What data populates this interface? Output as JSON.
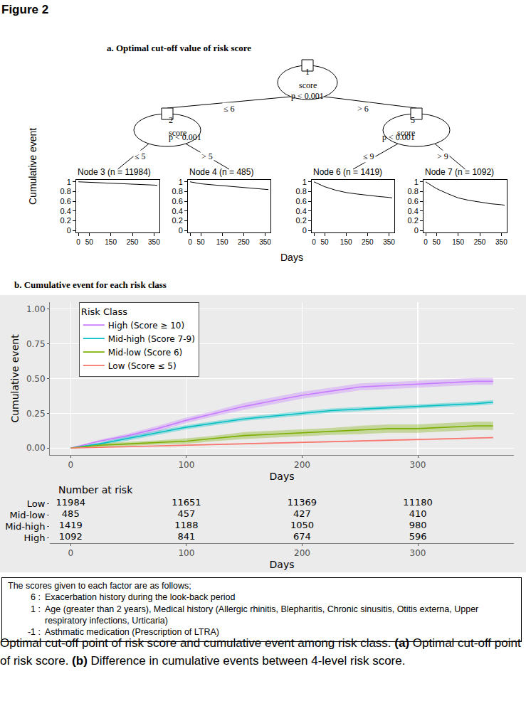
{
  "figure_label": "Figure 2",
  "chart_data": [
    {
      "type": "tree",
      "title": "a. Optimal cut-off value of risk score",
      "nodes": [
        {
          "id": "1",
          "label": "score",
          "p": "p < 0.001"
        },
        {
          "id": "2",
          "label": "score",
          "p": "p < 0.001"
        },
        {
          "id": "5",
          "label": "score",
          "p": "p < 0.001"
        }
      ],
      "edges": [
        {
          "from": "1",
          "to": "2",
          "label": "≤ 6"
        },
        {
          "from": "1",
          "to": "5",
          "label": "> 6"
        },
        {
          "from": "2",
          "to": "3",
          "label": "≤ 5"
        },
        {
          "from": "2",
          "to": "4",
          "label": "> 5"
        },
        {
          "from": "5",
          "to": "6",
          "label": "≤ 9"
        },
        {
          "from": "5",
          "to": "7",
          "label": "> 9"
        }
      ],
      "x": [
        0,
        50,
        100,
        150,
        200,
        250,
        300,
        350,
        365
      ],
      "leaves": [
        {
          "id": "3",
          "title": "Node 3 (n = 11984)",
          "values": [
            1,
            0.99,
            0.98,
            0.97,
            0.96,
            0.95,
            0.94,
            0.93,
            0.93
          ]
        },
        {
          "id": "4",
          "title": "Node 4 (n = 485)",
          "values": [
            1,
            0.96,
            0.94,
            0.92,
            0.9,
            0.88,
            0.87,
            0.85,
            0.84
          ]
        },
        {
          "id": "6",
          "title": "Node 6 (n = 1419)",
          "values": [
            1,
            0.9,
            0.83,
            0.78,
            0.75,
            0.72,
            0.7,
            0.68,
            0.67
          ]
        },
        {
          "id": "7",
          "title": "Node 7 (n = 1092)",
          "values": [
            1,
            0.86,
            0.76,
            0.67,
            0.62,
            0.58,
            0.55,
            0.53,
            0.52
          ]
        }
      ],
      "xlim": [
        -10,
        375
      ],
      "xticks": [
        0,
        50,
        150,
        250,
        350
      ],
      "ylim": [
        -0.04,
        1.04
      ],
      "yticks": [
        0,
        0.2,
        0.4,
        0.6,
        0.8,
        1
      ],
      "x_label": "Days",
      "y_label": "Cumulative event"
    },
    {
      "type": "line",
      "title": "b. Cumulative event for each risk class",
      "x": [
        0,
        25,
        50,
        75,
        100,
        125,
        150,
        175,
        200,
        225,
        250,
        275,
        300,
        325,
        350,
        365
      ],
      "series": [
        {
          "name": "High (Score ≥ 10)",
          "color": "#C77CFF",
          "values": [
            0,
            0.05,
            0.09,
            0.14,
            0.2,
            0.25,
            0.3,
            0.34,
            0.38,
            0.41,
            0.44,
            0.45,
            0.46,
            0.47,
            0.48,
            0.48
          ],
          "lower": [
            0,
            0.04,
            0.075,
            0.12,
            0.18,
            0.23,
            0.275,
            0.315,
            0.355,
            0.385,
            0.415,
            0.425,
            0.435,
            0.445,
            0.455,
            0.455
          ],
          "upper": [
            0,
            0.06,
            0.105,
            0.16,
            0.22,
            0.27,
            0.325,
            0.365,
            0.405,
            0.435,
            0.465,
            0.475,
            0.485,
            0.495,
            0.505,
            0.505
          ]
        },
        {
          "name": "Mid-high (Score 7-9)",
          "color": "#00BFC4",
          "values": [
            0,
            0.03,
            0.07,
            0.11,
            0.15,
            0.18,
            0.21,
            0.23,
            0.25,
            0.27,
            0.28,
            0.29,
            0.3,
            0.31,
            0.32,
            0.33
          ],
          "lower": [
            0,
            0.02,
            0.055,
            0.095,
            0.135,
            0.165,
            0.195,
            0.215,
            0.235,
            0.255,
            0.265,
            0.275,
            0.285,
            0.295,
            0.305,
            0.315
          ],
          "upper": [
            0,
            0.04,
            0.085,
            0.125,
            0.165,
            0.195,
            0.225,
            0.245,
            0.265,
            0.285,
            0.295,
            0.305,
            0.315,
            0.325,
            0.335,
            0.345
          ]
        },
        {
          "name": "Mid-low (Score 6)",
          "color": "#7CAE00",
          "values": [
            0,
            0.02,
            0.03,
            0.04,
            0.05,
            0.07,
            0.09,
            0.1,
            0.11,
            0.12,
            0.13,
            0.14,
            0.14,
            0.15,
            0.16,
            0.16
          ],
          "lower": [
            0,
            0.005,
            0.015,
            0.025,
            0.03,
            0.05,
            0.065,
            0.075,
            0.085,
            0.095,
            0.1,
            0.11,
            0.11,
            0.12,
            0.13,
            0.13
          ],
          "upper": [
            0,
            0.035,
            0.045,
            0.055,
            0.07,
            0.09,
            0.115,
            0.125,
            0.135,
            0.145,
            0.16,
            0.17,
            0.17,
            0.18,
            0.19,
            0.19
          ]
        },
        {
          "name": "Low (Score ≤ 5)",
          "color": "#F8766D",
          "values": [
            0,
            0.005,
            0.01,
            0.015,
            0.02,
            0.025,
            0.03,
            0.035,
            0.04,
            0.045,
            0.05,
            0.055,
            0.06,
            0.065,
            0.07,
            0.075
          ],
          "lower": [
            0,
            0.004,
            0.008,
            0.013,
            0.018,
            0.022,
            0.027,
            0.032,
            0.036,
            0.041,
            0.046,
            0.05,
            0.055,
            0.06,
            0.064,
            0.069
          ],
          "upper": [
            0,
            0.006,
            0.012,
            0.017,
            0.022,
            0.028,
            0.033,
            0.038,
            0.044,
            0.049,
            0.054,
            0.06,
            0.065,
            0.07,
            0.076,
            0.081
          ]
        }
      ],
      "legend_title": "Risk Class",
      "legend": "top-left",
      "grid": true,
      "xlim": [
        -18,
        383
      ],
      "xticks": [
        0,
        100,
        200,
        300
      ],
      "ylim": [
        -0.05,
        1.05
      ],
      "yticks": [
        {
          "value": 0,
          "label": "0.00"
        },
        {
          "value": 0.25,
          "label": "0.25"
        },
        {
          "value": 0.5,
          "label": "0.50"
        },
        {
          "value": 0.75,
          "label": "0.75"
        },
        {
          "value": 1,
          "label": "1.00"
        }
      ],
      "x_label": "Days",
      "y_label": "Cumulative event"
    },
    {
      "type": "table",
      "title": "Number at risk",
      "x": [
        0,
        100,
        200,
        300
      ],
      "rows": [
        {
          "name": "Low",
          "values": [
            11984,
            11651,
            11369,
            11180
          ]
        },
        {
          "name": "Mid-low",
          "values": [
            485,
            457,
            427,
            410
          ]
        },
        {
          "name": "Mid-high",
          "values": [
            1419,
            1188,
            1050,
            980
          ]
        },
        {
          "name": "High",
          "values": [
            1092,
            841,
            674,
            596
          ]
        }
      ],
      "xlim": [
        -18,
        383
      ],
      "xticks": [
        0,
        100,
        200,
        300
      ],
      "x_label": "Days"
    }
  ],
  "score_legend": {
    "title": "The scores given to each factor are as follows;",
    "items": [
      {
        "score": "6 :",
        "text": "Exacerbation history during the look-back period"
      },
      {
        "score": "1 :",
        "text": "Age (greater than 2 years),  Medical history (Allergic rhinitis, Blepharitis, Chronic sinusitis, Otitis externa, Upper respiratory infections, Urticaria)"
      },
      {
        "score": "-1 :",
        "text": "Asthmatic medication (Prescription of LTRA)"
      }
    ]
  },
  "caption": [
    "Optimal cut-off point of risk score and cumulative event among risk class. ",
    "(a)",
    " Optimal cut-off point of risk score. ",
    "(b)",
    " Difference in cumulative events between 4-level risk score."
  ]
}
